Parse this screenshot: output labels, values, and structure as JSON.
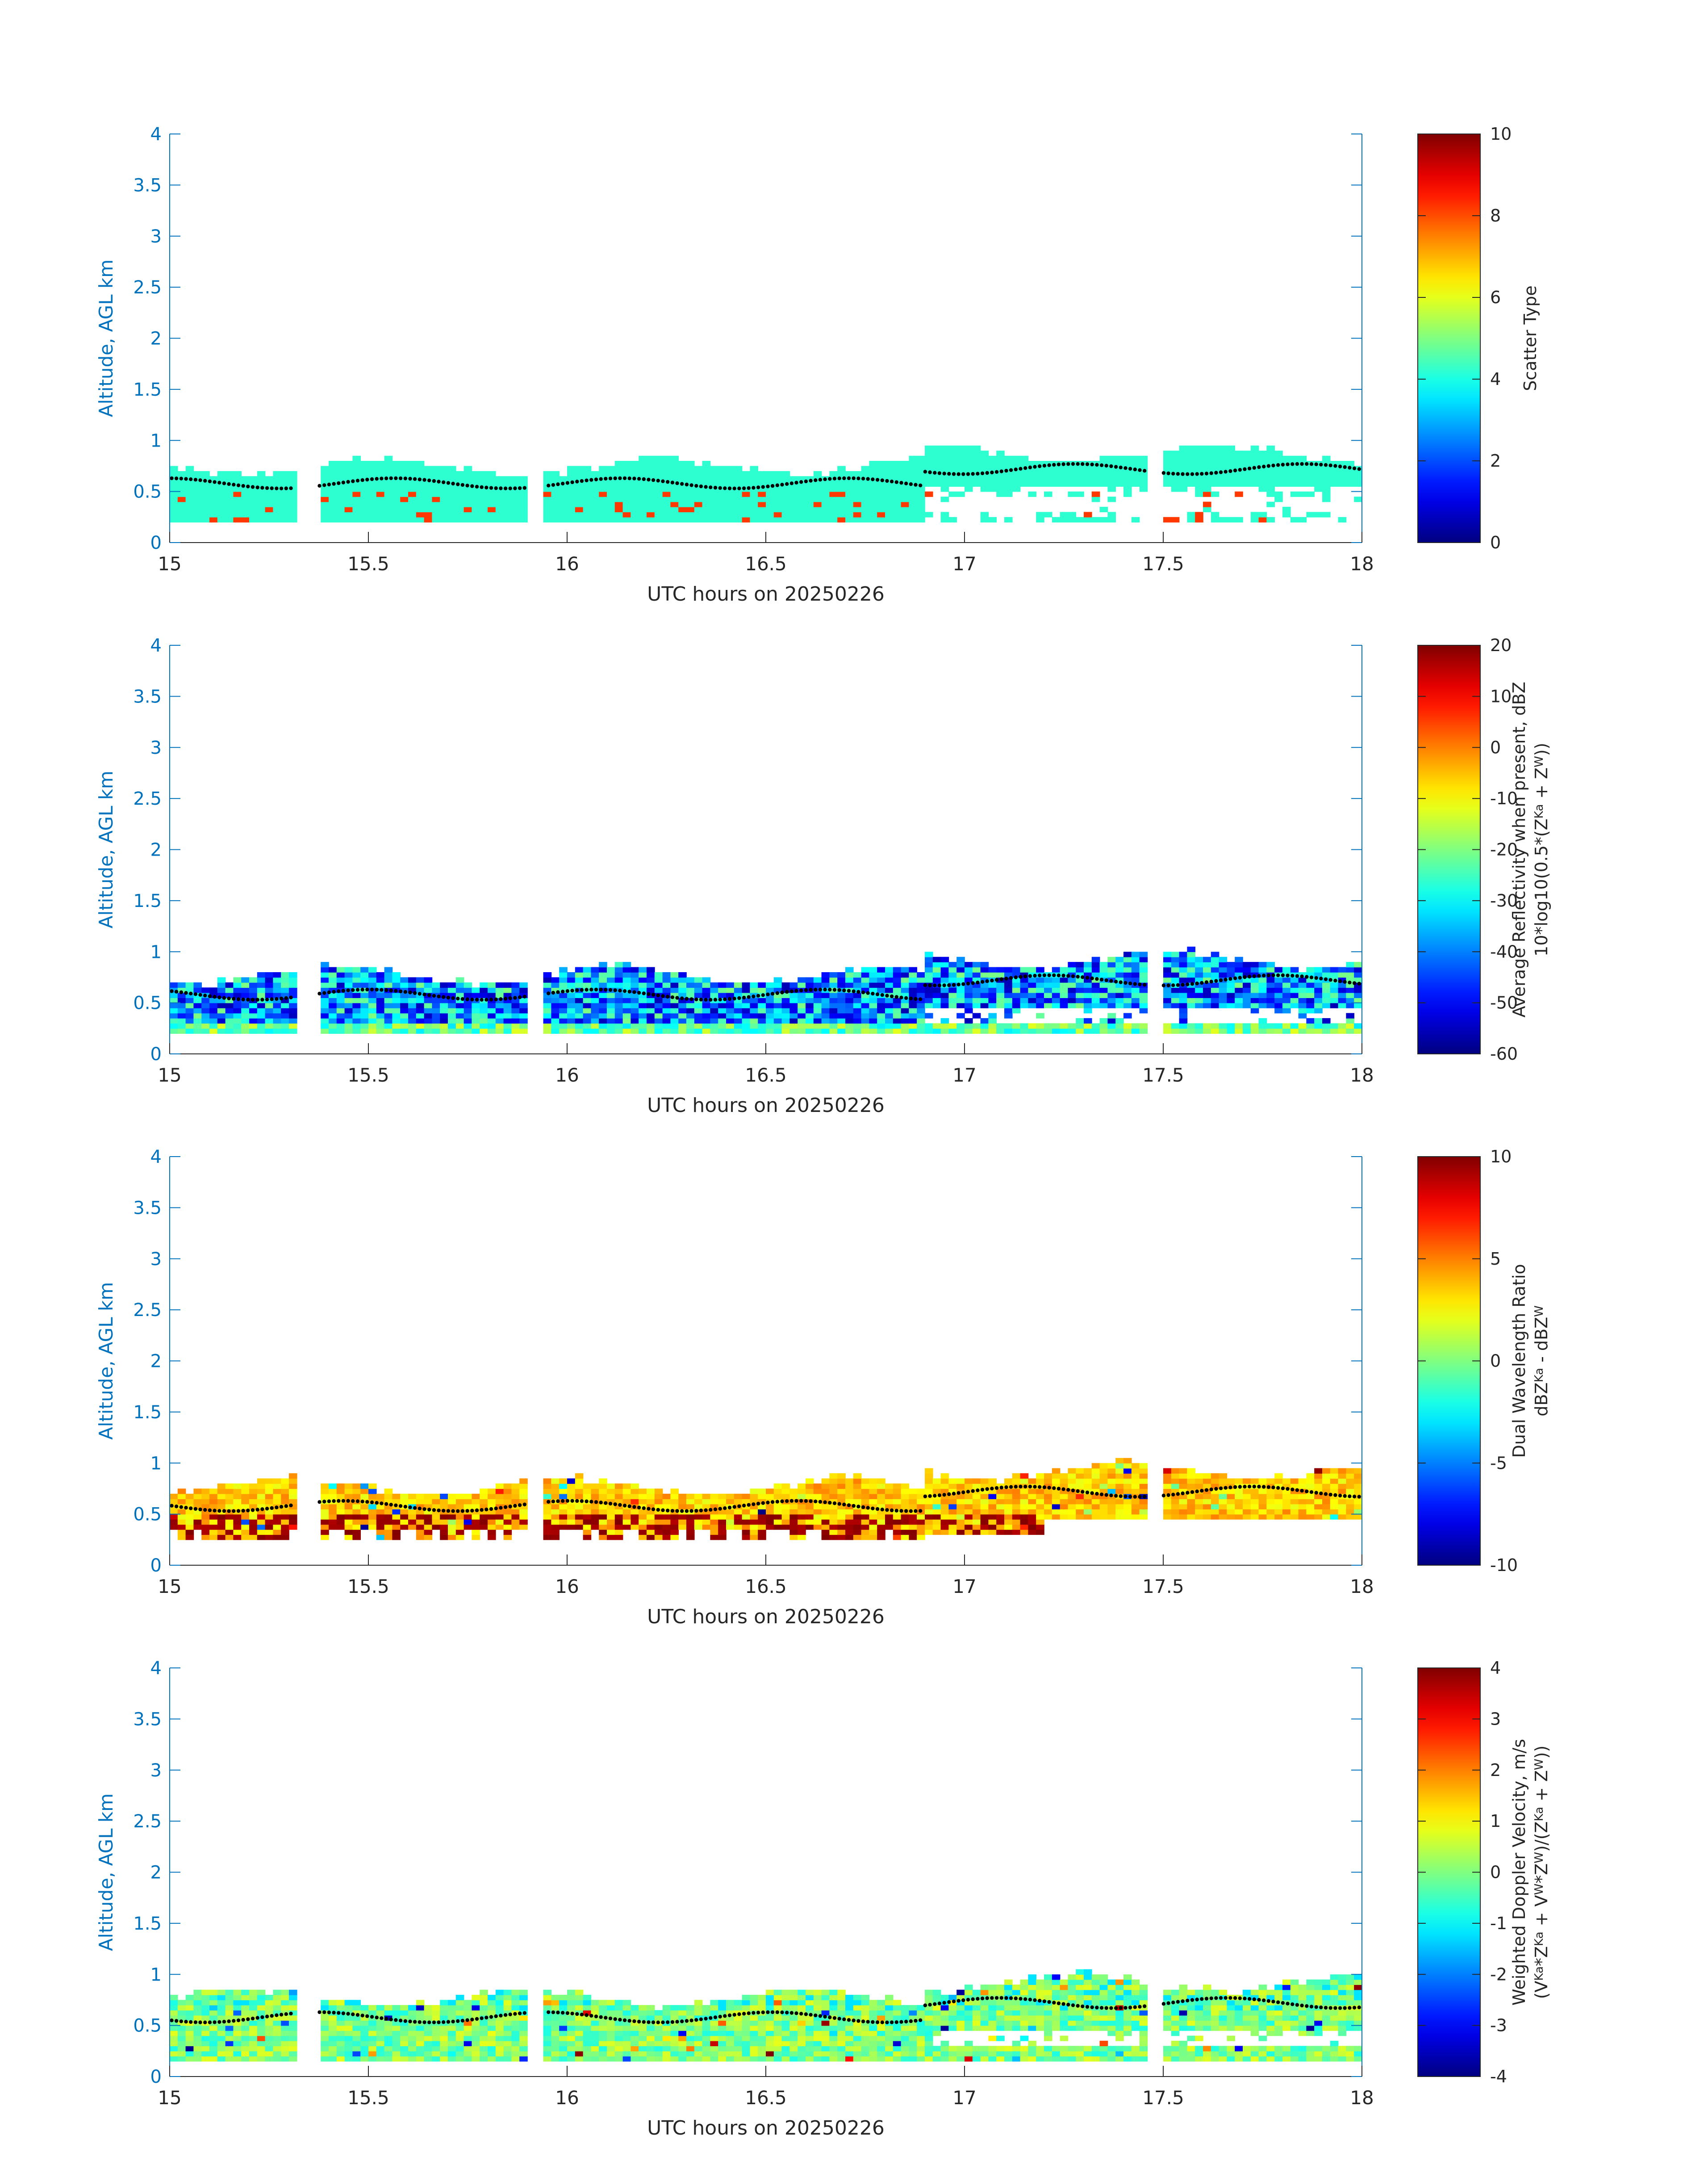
{
  "chart_data": [
    {
      "type": "heatmap",
      "xlabel": "UTC hours on 20250226",
      "ylabel": "Altitude, AGL km",
      "xlim": [
        15,
        18
      ],
      "ylim": [
        0,
        4
      ],
      "xticks": [
        "15",
        "15.5",
        "16",
        "16.5",
        "17",
        "17.5",
        "18"
      ],
      "yticks": [
        "0",
        "0.5",
        "1",
        "1.5",
        "2",
        "2.5",
        "3",
        "3.5",
        "4"
      ],
      "colorbar": {
        "label_lines": [
          "Scatter Type"
        ],
        "range": [
          0,
          10
        ],
        "ticks": [
          "0",
          "2",
          "4",
          "6",
          "8",
          "10"
        ]
      },
      "field": "scatter_type",
      "layer": {
        "base_km": 0.2,
        "top_km": 0.72,
        "top_late_km": 0.85
      },
      "dotted_line": "cloud top trace near 0.6–0.75 km"
    },
    {
      "type": "heatmap",
      "xlabel": "UTC hours on 20250226",
      "ylabel": "Altitude, AGL km",
      "xlim": [
        15,
        18
      ],
      "ylim": [
        0,
        4
      ],
      "xticks": [
        "15",
        "15.5",
        "16",
        "16.5",
        "17",
        "17.5",
        "18"
      ],
      "yticks": [
        "0",
        "0.5",
        "1",
        "1.5",
        "2",
        "2.5",
        "3",
        "3.5",
        "4"
      ],
      "colorbar": {
        "label_lines": [
          "Average Reflectivity when present, dBZ",
          "10*log10(0.5*(Z_Ka + Z_W))"
        ],
        "range": [
          -60,
          20
        ],
        "ticks": [
          "-60",
          "-50",
          "-40",
          "-30",
          "-20",
          "-10",
          "0",
          "10",
          "20"
        ]
      },
      "field": "reflectivity",
      "layer": {
        "base_km": 0.2,
        "top_km": 0.75,
        "top_late_km": 0.9
      },
      "dotted_line": "cloud top trace near 0.6–0.75 km"
    },
    {
      "type": "heatmap",
      "xlabel": "UTC hours on 20250226",
      "ylabel": "Altitude, AGL km",
      "xlim": [
        15,
        18
      ],
      "ylim": [
        0,
        4
      ],
      "xticks": [
        "15",
        "15.5",
        "16",
        "16.5",
        "17",
        "17.5",
        "18"
      ],
      "yticks": [
        "0",
        "0.5",
        "1",
        "1.5",
        "2",
        "2.5",
        "3",
        "3.5",
        "4"
      ],
      "colorbar": {
        "label_lines": [
          "Dual Wavelength Ratio",
          "dBZ_Ka - dBZ_W"
        ],
        "range": [
          -10,
          10
        ],
        "ticks": [
          "-10",
          "-5",
          "0",
          "5",
          "10"
        ]
      },
      "field": "dwr",
      "layer": {
        "base_km": 0.25,
        "top_km": 0.75,
        "top_late_km": 0.9
      },
      "dotted_line": "cloud top trace near 0.6–0.75 km"
    },
    {
      "type": "heatmap",
      "xlabel": "UTC hours on 20250226",
      "ylabel": "Altitude, AGL km",
      "xlim": [
        15,
        18
      ],
      "ylim": [
        0,
        4
      ],
      "xticks": [
        "15",
        "15.5",
        "16",
        "16.5",
        "17",
        "17.5",
        "18"
      ],
      "yticks": [
        "0",
        "0.5",
        "1",
        "1.5",
        "2",
        "2.5",
        "3",
        "3.5",
        "4"
      ],
      "colorbar": {
        "label_lines": [
          "Weighted Doppler Velocity, m/s",
          "(V_Ka*Z_Ka + V_W*Z_W)/(Z_Ka + Z_W))"
        ],
        "range": [
          -4,
          4
        ],
        "ticks": [
          "-4",
          "-3",
          "-2",
          "-1",
          "0",
          "1",
          "2",
          "3",
          "4"
        ]
      },
      "field": "doppler_velocity",
      "layer": {
        "base_km": 0.15,
        "top_km": 0.75,
        "top_late_km": 0.9
      },
      "dotted_line": "cloud top trace near 0.6–0.75 km"
    }
  ]
}
